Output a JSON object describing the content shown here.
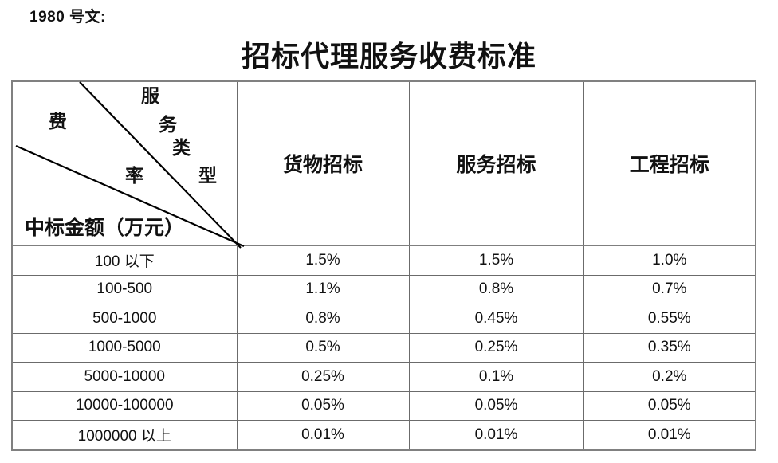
{
  "doc_number": "1980 号文:",
  "title": "招标代理服务收费标准",
  "table": {
    "corner": {
      "diag_label_chars": [
        "服",
        "务",
        "类",
        "型"
      ],
      "rate_label_chars": [
        "费",
        "率"
      ],
      "bottom_label": "中标金额（万元）"
    },
    "columns": [
      "货物招标",
      "服务招标",
      "工程招标"
    ],
    "rows": [
      {
        "range": "100 以下",
        "values": [
          "1.5%",
          "1.5%",
          "1.0%"
        ]
      },
      {
        "range": "100-500",
        "values": [
          "1.1%",
          "0.8%",
          "0.7%"
        ]
      },
      {
        "range": "500-1000",
        "values": [
          "0.8%",
          "0.45%",
          "0.55%"
        ]
      },
      {
        "range": "1000-5000",
        "values": [
          "0.5%",
          "0.25%",
          "0.35%"
        ]
      },
      {
        "range": "5000-10000",
        "values": [
          "0.25%",
          "0.1%",
          "0.2%"
        ]
      },
      {
        "range": "10000-100000",
        "values": [
          "0.05%",
          "0.05%",
          "0.05%"
        ]
      },
      {
        "range": "1000000 以上",
        "values": [
          "0.01%",
          "0.01%",
          "0.01%"
        ]
      }
    ]
  },
  "colors": {
    "border_outer": "#808080",
    "border_inner": "#6b6b6b",
    "diagonal_line": "#000000",
    "text": "#111111",
    "background": "#ffffff"
  }
}
